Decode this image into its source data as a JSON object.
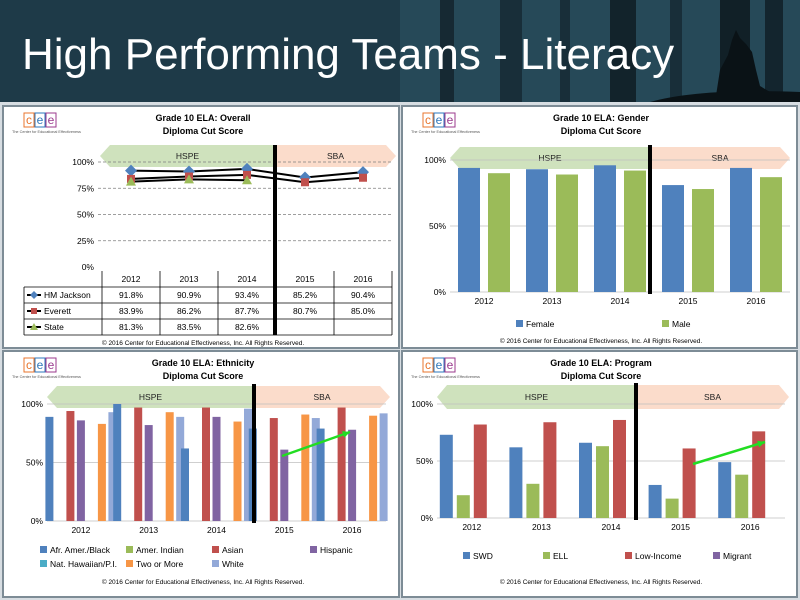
{
  "page": {
    "title": "High Performing Teams - Literacy"
  },
  "logo": {
    "letters": "cee",
    "tagline": "The Center for Educational Effectiveness"
  },
  "colors": {
    "arrow_hspe": "#cfe2bd",
    "arrow_sba": "#fbdccb",
    "blue": "#4f81bd",
    "red": "#c0504d",
    "green": "#9bbb59",
    "purple": "#8064a2",
    "teal": "#4bacc6",
    "orange": "#f79646",
    "lightblue": "#93a9d8",
    "trend_arrow": "#22dd22"
  },
  "chart_data": [
    {
      "id": "overall",
      "type": "line",
      "title": "Grade 10 ELA: Overall",
      "subtitle": "Diploma Cut Score",
      "period_labels": [
        "HSPE",
        "SBA"
      ],
      "categories": [
        "2012",
        "2013",
        "2014",
        "2015",
        "2016"
      ],
      "yticks": [
        "0%",
        "25%",
        "50%",
        "75%",
        "100%"
      ],
      "ylim": [
        0,
        100
      ],
      "grid": true,
      "series": [
        {
          "name": "HM Jackson",
          "values": [
            91.8,
            90.9,
            93.4,
            85.2,
            90.4
          ],
          "display": [
            "91.8%",
            "90.9%",
            "93.4%",
            "85.2%",
            "90.4%"
          ]
        },
        {
          "name": "Everett",
          "values": [
            83.9,
            86.2,
            87.7,
            80.7,
            85.0
          ],
          "display": [
            "83.9%",
            "86.2%",
            "87.7%",
            "80.7%",
            "85.0%"
          ]
        },
        {
          "name": "State",
          "values": [
            81.3,
            83.5,
            82.6,
            null,
            null
          ],
          "display": [
            "81.3%",
            "83.5%",
            "82.6%",
            "",
            ""
          ]
        }
      ],
      "footer": "© 2016 Center for Educational Effectiveness, Inc. All Rights Reserved."
    },
    {
      "id": "gender",
      "type": "bar",
      "title": "Grade 10 ELA: Gender",
      "subtitle": "Diploma Cut Score",
      "period_labels": [
        "HSPE",
        "SBA"
      ],
      "categories": [
        "2012",
        "2013",
        "2014",
        "2015",
        "2016"
      ],
      "yticks": [
        "0%",
        "50%",
        "100%"
      ],
      "ylim": [
        0,
        100
      ],
      "series": [
        {
          "name": "Female",
          "values": [
            94,
            93,
            96,
            81,
            94
          ]
        },
        {
          "name": "Male",
          "values": [
            90,
            89,
            92,
            78,
            87
          ]
        }
      ],
      "footer": "© 2016 Center for Educational Effectiveness, Inc. All Rights Reserved."
    },
    {
      "id": "ethnicity",
      "type": "bar",
      "title": "Grade 10 ELA: Ethnicity",
      "subtitle": "Diploma Cut Score",
      "period_labels": [
        "HSPE",
        "SBA"
      ],
      "categories": [
        "2012",
        "2013",
        "2014",
        "2015",
        "2016"
      ],
      "yticks": [
        "0%",
        "50%",
        "100%"
      ],
      "ylim": [
        0,
        100
      ],
      "series": [
        {
          "name": "Afr. Amer./Black",
          "values": [
            89,
            100,
            62,
            79,
            79
          ]
        },
        {
          "name": "Amer. Indian",
          "values": [
            null,
            null,
            null,
            null,
            null
          ]
        },
        {
          "name": "Asian",
          "values": [
            94,
            97,
            97,
            88,
            97
          ]
        },
        {
          "name": "Hispanic",
          "values": [
            86,
            82,
            89,
            61,
            78
          ]
        },
        {
          "name": "Nat. Hawaiian/P.I.",
          "values": [
            null,
            null,
            null,
            null,
            null
          ]
        },
        {
          "name": "Two or More",
          "values": [
            83,
            93,
            85,
            91,
            90
          ]
        },
        {
          "name": "White",
          "values": [
            93,
            89,
            96,
            88,
            92
          ]
        }
      ],
      "footer": "© 2016 Center for Educational Effectiveness, Inc. All Rights Reserved."
    },
    {
      "id": "program",
      "type": "bar",
      "title": "Grade 10 ELA: Program",
      "subtitle": "Diploma Cut Score",
      "period_labels": [
        "HSPE",
        "SBA"
      ],
      "categories": [
        "2012",
        "2013",
        "2014",
        "2015",
        "2016"
      ],
      "yticks": [
        "0%",
        "50%",
        "100%"
      ],
      "ylim": [
        0,
        100
      ],
      "series": [
        {
          "name": "SWD",
          "values": [
            73,
            62,
            66,
            29,
            49
          ]
        },
        {
          "name": "ELL",
          "values": [
            20,
            30,
            63,
            17,
            38
          ]
        },
        {
          "name": "Low-Income",
          "values": [
            82,
            84,
            86,
            61,
            76
          ]
        },
        {
          "name": "Migrant",
          "values": [
            null,
            null,
            null,
            null,
            null
          ]
        }
      ],
      "footer": "© 2016 Center for Educational Effectiveness, Inc. All Rights Reserved."
    }
  ]
}
